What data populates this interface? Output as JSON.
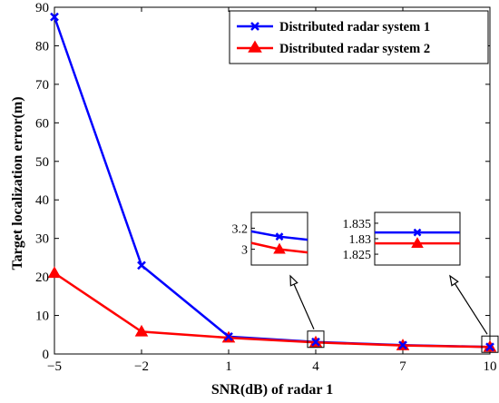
{
  "chart_data": {
    "type": "line",
    "xlabel": "SNR(dB) of radar 1",
    "ylabel": "Target localization error(m)",
    "x": [
      -5,
      -2,
      1,
      4,
      7,
      10
    ],
    "xlim": [
      -5,
      10
    ],
    "ylim": [
      0,
      90
    ],
    "xticks": [
      "−5",
      "−2",
      "1",
      "4",
      "7",
      "10"
    ],
    "yticks": [
      "0",
      "10",
      "20",
      "30",
      "40",
      "50",
      "60",
      "70",
      "80",
      "90"
    ],
    "grid": false,
    "legend_position": "top-right",
    "series": [
      {
        "name": "Distributed radar system 1",
        "color": "#0000ff",
        "marker": "x",
        "values": [
          87.5,
          23.0,
          4.5,
          3.12,
          2.3,
          1.832
        ]
      },
      {
        "name": "Distributed radar system 2",
        "color": "#ff0000",
        "marker": "triangle",
        "values": [
          21.0,
          5.8,
          4.2,
          3.0,
          2.2,
          1.828
        ]
      }
    ],
    "insets": [
      {
        "target_x": 4,
        "yticks": [
          "3.2",
          "3"
        ],
        "ytick_values": [
          3.2,
          3.0
        ],
        "ylim": [
          2.85,
          3.35
        ],
        "series1": [
          3.17,
          3.12,
          3.09
        ],
        "series2": [
          3.06,
          3.0,
          2.97
        ]
      },
      {
        "target_x": 10,
        "yticks": [
          "1.835",
          "1.83",
          "1.825"
        ],
        "ytick_values": [
          1.835,
          1.83,
          1.825
        ],
        "ylim": [
          1.8215,
          1.8385
        ],
        "series1": [
          1.832,
          1.832,
          1.832
        ],
        "series2": [
          1.8285,
          1.8285,
          1.8285
        ]
      }
    ]
  }
}
